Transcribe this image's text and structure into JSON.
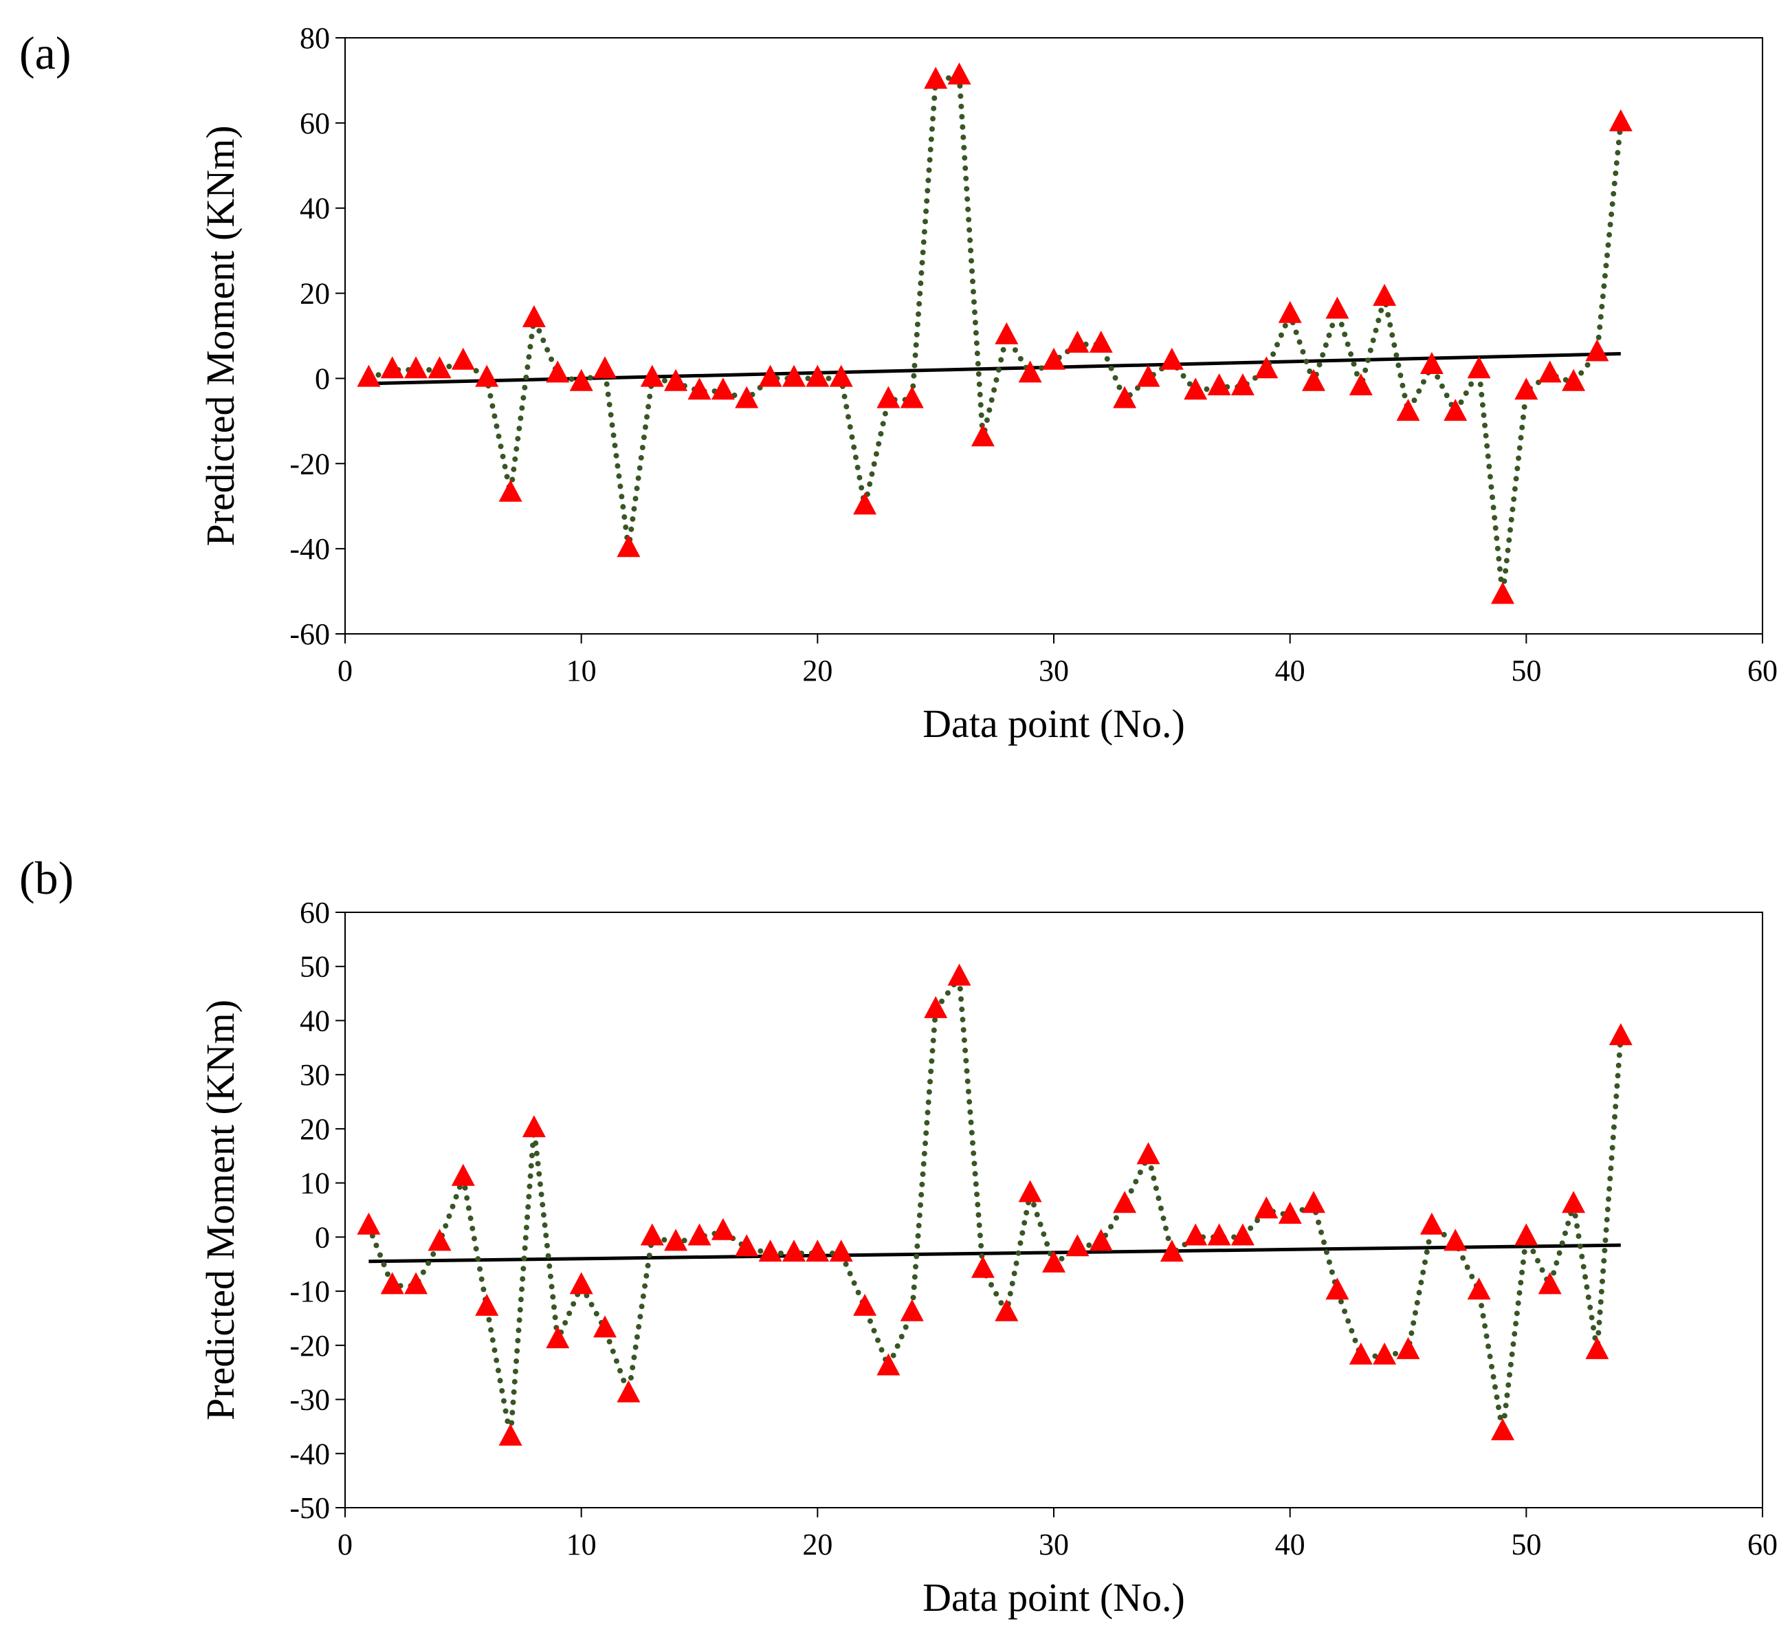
{
  "chart_data": [
    {
      "type": "line",
      "panel_label": "(a)",
      "title": "",
      "xlabel": "Data point (No.)",
      "ylabel": "Predicted Moment (KNm)",
      "xlim": [
        0,
        60
      ],
      "ylim": [
        -60,
        80
      ],
      "xticks": [
        0,
        10,
        20,
        30,
        40,
        50,
        60
      ],
      "yticks": [
        -60,
        -40,
        -20,
        0,
        20,
        40,
        60,
        80
      ],
      "xtick_labels": [
        "0",
        "10",
        "20",
        "30",
        "40",
        "50",
        "60"
      ],
      "ytick_labels": [
        "-60",
        "-40",
        "-20",
        "0",
        "20",
        "40",
        "60",
        "80"
      ],
      "grid": false,
      "legend": "none",
      "series": [
        {
          "name": "Predicted moment",
          "marker": "triangle",
          "marker_color": "#ff0000",
          "line_style": "dotted",
          "line_color": "#375623",
          "x": [
            1,
            2,
            3,
            4,
            5,
            6,
            7,
            8,
            9,
            10,
            11,
            12,
            13,
            14,
            15,
            16,
            17,
            18,
            19,
            20,
            21,
            22,
            23,
            24,
            25,
            26,
            27,
            28,
            29,
            30,
            31,
            32,
            33,
            34,
            35,
            36,
            37,
            38,
            39,
            40,
            41,
            42,
            43,
            44,
            45,
            46,
            47,
            48,
            49,
            50,
            51,
            52,
            53,
            54
          ],
          "values": [
            0,
            2,
            2,
            2,
            4,
            0,
            -27,
            14,
            1,
            -1,
            2,
            -40,
            0,
            -1,
            -3,
            -3,
            -5,
            0,
            0,
            0,
            0,
            -30,
            -5,
            -5,
            70,
            71,
            -14,
            10,
            1,
            4,
            8,
            8,
            -5,
            0,
            4,
            -3,
            -2,
            -2,
            2,
            15,
            -1,
            16,
            -2,
            19,
            -8,
            3,
            -8,
            2,
            -51,
            -3,
            1,
            -1,
            6,
            60
          ]
        },
        {
          "name": "Linear trend",
          "line_style": "solid",
          "line_color": "#000000",
          "x": [
            1,
            54
          ],
          "values": [
            -1.2,
            5.8
          ]
        }
      ]
    },
    {
      "type": "line",
      "panel_label": "(b)",
      "title": "",
      "xlabel": "Data point (No.)",
      "ylabel": "Predicted Moment (KNm)",
      "xlim": [
        0,
        60
      ],
      "ylim": [
        -50,
        60
      ],
      "xticks": [
        0,
        10,
        20,
        30,
        40,
        50,
        60
      ],
      "yticks": [
        -50,
        -40,
        -30,
        -20,
        -10,
        0,
        10,
        20,
        30,
        40,
        50,
        60
      ],
      "xtick_labels": [
        "0",
        "10",
        "20",
        "30",
        "40",
        "50",
        "60"
      ],
      "ytick_labels": [
        "-50",
        "-40",
        "-30",
        "-20",
        "-10",
        "0",
        "10",
        "20",
        "30",
        "40",
        "50",
        "60"
      ],
      "grid": false,
      "legend": "none",
      "series": [
        {
          "name": "Predicted moment",
          "marker": "triangle",
          "marker_color": "#ff0000",
          "line_style": "dotted",
          "line_color": "#375623",
          "x": [
            1,
            2,
            3,
            4,
            5,
            6,
            7,
            8,
            9,
            10,
            11,
            12,
            13,
            14,
            15,
            16,
            17,
            18,
            19,
            20,
            21,
            22,
            23,
            24,
            25,
            26,
            27,
            28,
            29,
            30,
            31,
            32,
            33,
            34,
            35,
            36,
            37,
            38,
            39,
            40,
            41,
            42,
            43,
            44,
            45,
            46,
            47,
            48,
            49,
            50,
            51,
            52,
            53,
            54
          ],
          "values": [
            2,
            -9,
            -9,
            -1,
            11,
            -13,
            -37,
            20,
            -19,
            -9,
            -17,
            -29,
            0,
            -1,
            0,
            1,
            -2,
            -3,
            -3,
            -3,
            -3,
            -13,
            -24,
            -14,
            42,
            48,
            -6,
            -14,
            8,
            -5,
            -2,
            -1,
            6,
            15,
            -3,
            0,
            0,
            0,
            5,
            4,
            6,
            -10,
            -22,
            -22,
            -21,
            2,
            -1,
            -10,
            -36,
            0,
            -9,
            6,
            -21,
            37
          ]
        },
        {
          "name": "Linear trend",
          "line_style": "solid",
          "line_color": "#000000",
          "x": [
            1,
            54
          ],
          "values": [
            -4.5,
            -1.5
          ]
        }
      ]
    }
  ]
}
